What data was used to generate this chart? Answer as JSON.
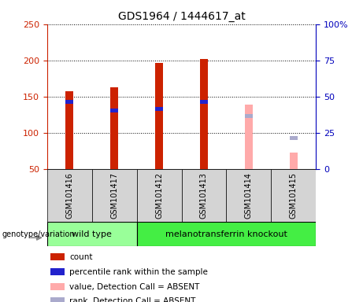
{
  "title": "GDS1964 / 1444617_at",
  "samples": [
    "GSM101416",
    "GSM101417",
    "GSM101412",
    "GSM101413",
    "GSM101414",
    "GSM101415"
  ],
  "count_values": [
    157,
    163,
    197,
    202,
    null,
    null
  ],
  "count_absent_values": [
    null,
    null,
    null,
    null,
    139,
    73
  ],
  "rank_values": [
    143,
    131,
    133,
    143,
    null,
    null
  ],
  "rank_absent_values": [
    null,
    null,
    null,
    null,
    123,
    93
  ],
  "ylim_left": [
    50,
    250
  ],
  "ylim_right": [
    0,
    100
  ],
  "yticks_left": [
    50,
    100,
    150,
    200,
    250
  ],
  "yticks_right": [
    0,
    25,
    50,
    75,
    100
  ],
  "bar_width": 0.18,
  "rank_bar_height": 5,
  "color_count": "#cc2200",
  "color_rank": "#2222cc",
  "color_count_absent": "#ffaaaa",
  "color_rank_absent": "#aaaacc",
  "wt_color": "#99ff99",
  "mt_color": "#44ee44",
  "legend_items": [
    {
      "label": "count",
      "color": "#cc2200"
    },
    {
      "label": "percentile rank within the sample",
      "color": "#2222cc"
    },
    {
      "label": "value, Detection Call = ABSENT",
      "color": "#ffaaaa"
    },
    {
      "label": "rank, Detection Call = ABSENT",
      "color": "#aaaacc"
    }
  ],
  "background_color": "#ffffff",
  "tick_label_color_left": "#cc2200",
  "tick_label_color_right": "#0000bb"
}
